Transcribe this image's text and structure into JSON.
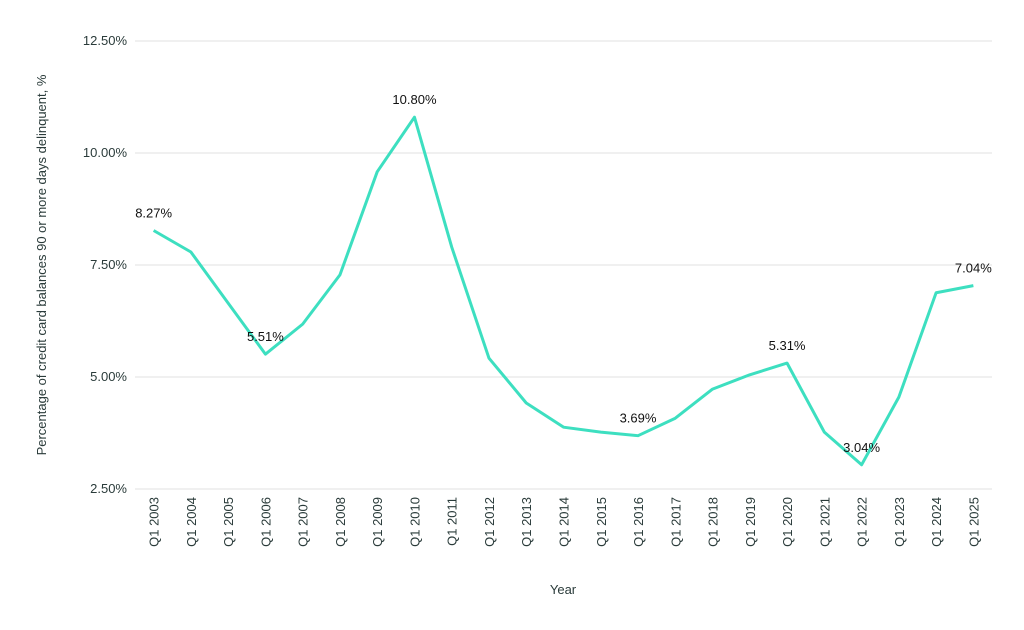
{
  "chart_data": {
    "type": "line",
    "x_label": "Year",
    "y_label": "Percentage of credit card balances 90 or more days delinquent, %",
    "categories": [
      "Q1 2003",
      "Q1 2004",
      "Q1 2005",
      "Q1 2006",
      "Q1 2007",
      "Q1 2008",
      "Q1 2009",
      "Q1 2010",
      "Q1 2011",
      "Q1 2012",
      "Q1 2013",
      "Q1 2014",
      "Q1 2015",
      "Q1 2016",
      "Q1 2017",
      "Q1 2018",
      "Q1 2019",
      "Q1 2020",
      "Q1 2021",
      "Q1 2022",
      "Q1 2023",
      "Q1 2024",
      "Q1 2025"
    ],
    "values": [
      8.27,
      7.79,
      6.65,
      5.51,
      6.18,
      7.28,
      9.58,
      10.8,
      7.9,
      5.42,
      4.42,
      3.88,
      3.77,
      3.69,
      4.08,
      4.73,
      5.05,
      5.31,
      3.77,
      3.04,
      4.55,
      6.88,
      7.04
    ],
    "value_labels": [
      "8.27%",
      null,
      null,
      "5.51%",
      null,
      null,
      null,
      "10.80%",
      null,
      null,
      null,
      null,
      null,
      "3.69%",
      null,
      null,
      null,
      "5.31%",
      null,
      "3.04%",
      null,
      null,
      "7.04%"
    ],
    "color": "#3ddfc0",
    "ylim": [
      2.5,
      12.5
    ],
    "yticks": [
      {
        "value": 2.5,
        "label": "2.50%"
      },
      {
        "value": 5,
        "label": "5.00%"
      },
      {
        "value": 7.5,
        "label": "7.50%"
      },
      {
        "value": 10,
        "label": "10.00%"
      },
      {
        "value": 12.5,
        "label": "12.50%"
      }
    ],
    "grid": true
  }
}
